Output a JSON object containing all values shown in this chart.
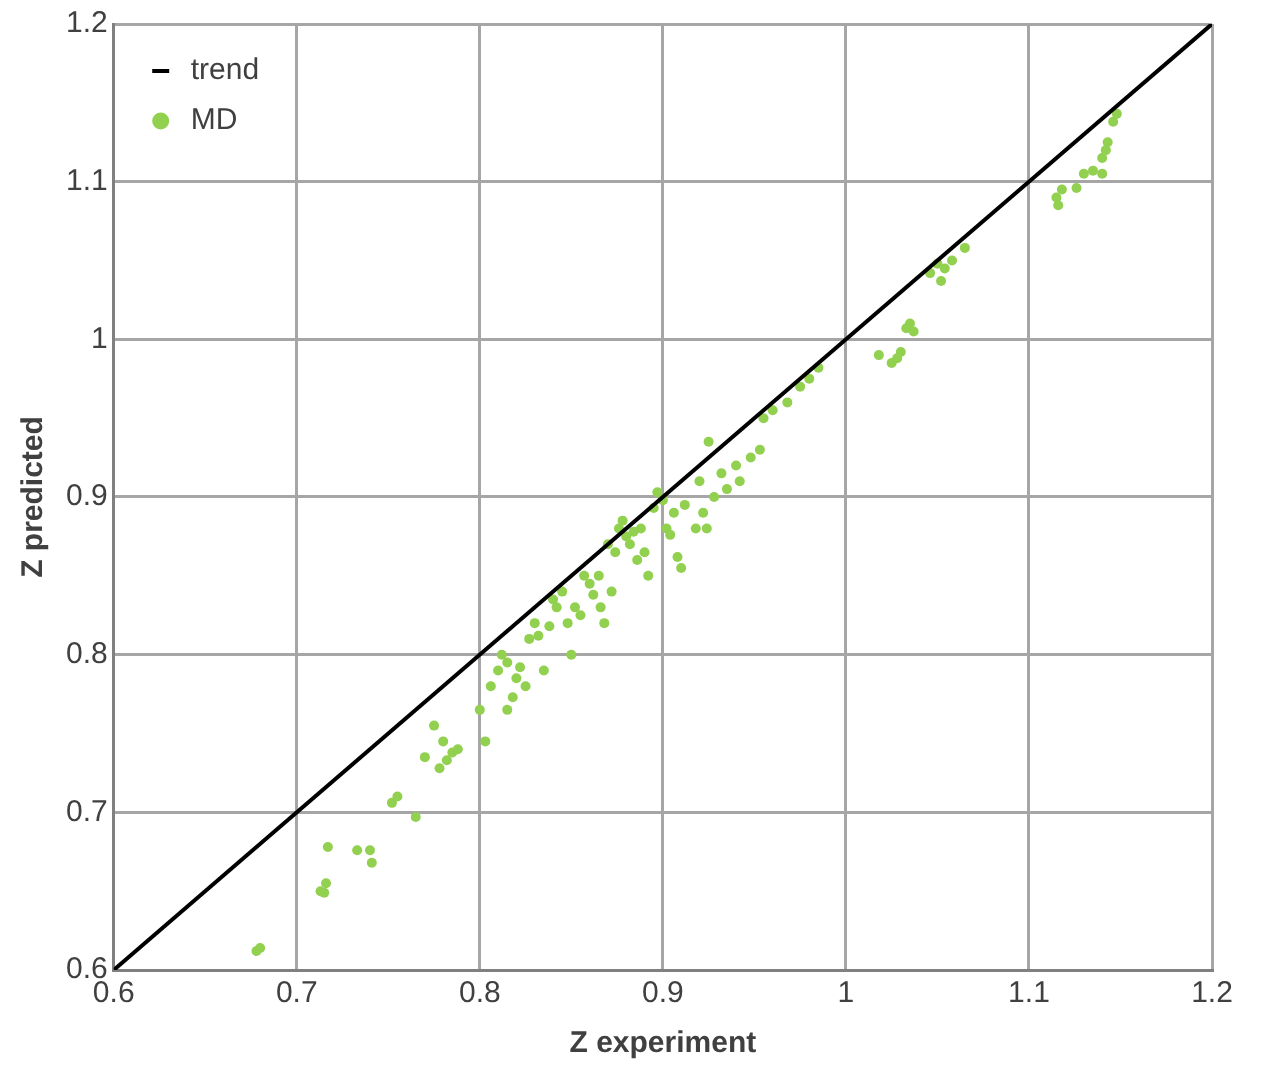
{
  "chart_data": {
    "type": "scatter",
    "xlabel": "Z experiment",
    "ylabel": "Z predicted",
    "xlim": [
      0.6,
      1.2
    ],
    "ylim": [
      0.6,
      1.2
    ],
    "xticks": [
      0.6,
      0.7,
      0.8,
      0.9,
      1,
      1.1,
      1.2
    ],
    "yticks": [
      0.6,
      0.7,
      0.8,
      0.9,
      1,
      1.1,
      1.2
    ],
    "grid": true,
    "legend": "top left",
    "marker": "circle",
    "series": [
      {
        "name": "trend",
        "type": "line",
        "color": "#000000",
        "marker": "none",
        "x": [
          0.6,
          1.2
        ],
        "values": [
          0.6,
          1.2
        ]
      },
      {
        "name": "MD",
        "color": "#92d050",
        "x": [
          0.678,
          0.68,
          0.713,
          0.716,
          0.715,
          0.717,
          0.733,
          0.74,
          0.741,
          0.752,
          0.755,
          0.765,
          0.77,
          0.775,
          0.78,
          0.778,
          0.785,
          0.782,
          0.788,
          0.8,
          0.803,
          0.806,
          0.81,
          0.812,
          0.815,
          0.818,
          0.82,
          0.822,
          0.825,
          0.827,
          0.815,
          0.83,
          0.832,
          0.835,
          0.838,
          0.84,
          0.842,
          0.845,
          0.848,
          0.85,
          0.852,
          0.855,
          0.857,
          0.86,
          0.862,
          0.865,
          0.866,
          0.868,
          0.87,
          0.872,
          0.874,
          0.876,
          0.878,
          0.88,
          0.882,
          0.884,
          0.886,
          0.888,
          0.89,
          0.892,
          0.895,
          0.897,
          0.9,
          0.902,
          0.904,
          0.906,
          0.908,
          0.91,
          0.912,
          0.918,
          0.92,
          0.922,
          0.925,
          0.924,
          0.928,
          0.932,
          0.935,
          0.94,
          0.942,
          0.948,
          0.953,
          0.955,
          0.96,
          0.968,
          0.975,
          0.98,
          0.985,
          1.018,
          1.025,
          1.028,
          1.03,
          1.033,
          1.035,
          1.037,
          1.046,
          1.05,
          1.052,
          1.054,
          1.058,
          1.065,
          1.115,
          1.116,
          1.118,
          1.126,
          1.13,
          1.135,
          1.14,
          1.14,
          1.142,
          1.143,
          1.146,
          1.148
        ],
        "values": [
          0.612,
          0.614,
          0.65,
          0.655,
          0.649,
          0.678,
          0.676,
          0.676,
          0.668,
          0.706,
          0.71,
          0.697,
          0.735,
          0.755,
          0.745,
          0.728,
          0.738,
          0.733,
          0.74,
          0.765,
          0.745,
          0.78,
          0.79,
          0.8,
          0.795,
          0.773,
          0.785,
          0.792,
          0.78,
          0.81,
          0.765,
          0.82,
          0.812,
          0.79,
          0.818,
          0.835,
          0.83,
          0.84,
          0.82,
          0.8,
          0.83,
          0.825,
          0.85,
          0.845,
          0.838,
          0.85,
          0.83,
          0.82,
          0.87,
          0.84,
          0.865,
          0.88,
          0.885,
          0.875,
          0.87,
          0.878,
          0.86,
          0.88,
          0.865,
          0.85,
          0.893,
          0.903,
          0.898,
          0.88,
          0.876,
          0.89,
          0.862,
          0.855,
          0.895,
          0.88,
          0.91,
          0.89,
          0.935,
          0.88,
          0.9,
          0.915,
          0.905,
          0.92,
          0.91,
          0.925,
          0.93,
          0.95,
          0.955,
          0.96,
          0.97,
          0.975,
          0.982,
          0.99,
          0.985,
          0.988,
          0.992,
          1.007,
          1.01,
          1.005,
          1.042,
          1.048,
          1.037,
          1.045,
          1.05,
          1.058,
          1.09,
          1.085,
          1.095,
          1.096,
          1.105,
          1.107,
          1.105,
          1.115,
          1.12,
          1.125,
          1.138,
          1.143
        ]
      }
    ]
  }
}
